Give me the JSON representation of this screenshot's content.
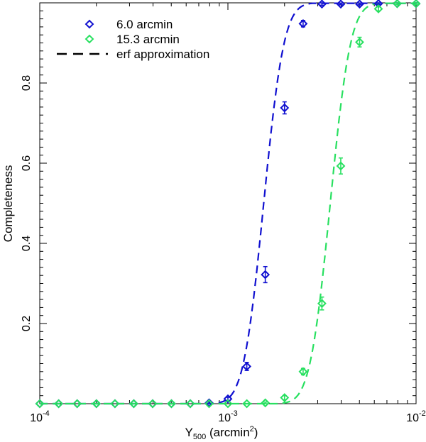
{
  "chart_data": {
    "type": "scatter",
    "title": "",
    "xlabel": {
      "base": "Y",
      "sub": "500",
      "unit_open": " (arcmin",
      "unit_sup": "2",
      "unit_close": ")"
    },
    "ylabel": "Completeness",
    "xscale": "log",
    "xlim": [
      0.0001,
      0.01
    ],
    "ylim": [
      0.0,
      1.0
    ],
    "x_ticks": [
      {
        "value": 0.0001,
        "base": "10",
        "exp": "-4"
      },
      {
        "value": 0.001,
        "base": "10",
        "exp": "-3"
      },
      {
        "value": 0.01,
        "base": "10",
        "exp": "-2"
      }
    ],
    "y_ticks": [
      {
        "value": 0.2,
        "label": "0.2"
      },
      {
        "value": 0.4,
        "label": "0.4"
      },
      {
        "value": 0.6,
        "label": "0.6"
      },
      {
        "value": 0.8,
        "label": "0.8"
      }
    ],
    "legend_position": "top-left",
    "legend": [
      {
        "label": "6.0 arcmin",
        "kind": "marker",
        "color": "#1010d0"
      },
      {
        "label": "15.3 arcmin",
        "kind": "marker",
        "color": "#28e060"
      },
      {
        "label": "erf approximation",
        "kind": "dashed-line",
        "color": "#000000"
      }
    ],
    "series": [
      {
        "name": "6.0 arcmin",
        "color": "#1010d0",
        "x": [
          0.0001,
          0.000126,
          0.000158,
          0.0002,
          0.000251,
          0.000316,
          0.000398,
          0.000501,
          0.000631,
          0.000794,
          0.001,
          0.00126,
          0.00158,
          0.002,
          0.00251,
          0.00316,
          0.00398,
          0.00501,
          0.00631,
          0.00794,
          0.01
        ],
        "y": [
          0.0,
          0.0,
          0.0,
          0.0,
          0.0,
          0.0,
          0.0,
          0.0,
          0.0,
          0.002,
          0.012,
          0.093,
          0.322,
          0.738,
          0.948,
          0.997,
          0.997,
          0.997,
          0.998,
          0.998,
          0.998
        ],
        "err": [
          0,
          0,
          0,
          0,
          0,
          0,
          0,
          0,
          0,
          0.002,
          0.004,
          0.01,
          0.02,
          0.015,
          0.008,
          0.003,
          0.002,
          0.002,
          0.002,
          0.002,
          0.002
        ]
      },
      {
        "name": "15.3 arcmin",
        "color": "#28e060",
        "x": [
          0.0001,
          0.000126,
          0.000158,
          0.0002,
          0.000251,
          0.000316,
          0.000398,
          0.000501,
          0.000631,
          0.000794,
          0.001,
          0.00126,
          0.00158,
          0.002,
          0.00251,
          0.00316,
          0.00398,
          0.00501,
          0.00631,
          0.00794,
          0.01
        ],
        "y": [
          0.0,
          0.0,
          0.0,
          0.0,
          0.0,
          0.0,
          0.0,
          0.0,
          0.0,
          0.0,
          0.0,
          0.0,
          0.002,
          0.015,
          0.08,
          0.25,
          0.593,
          0.902,
          0.985,
          0.998,
          0.998
        ],
        "err": [
          0,
          0,
          0,
          0,
          0,
          0,
          0,
          0,
          0,
          0,
          0,
          0,
          0.002,
          0.005,
          0.008,
          0.016,
          0.02,
          0.012,
          0.005,
          0.002,
          0.002
        ]
      }
    ],
    "erf_fits": [
      {
        "name": "6.0 arcmin erf",
        "color": "#1010d0",
        "center": 0.00155,
        "sigma_dex": 0.085,
        "floor_x": 0.00085
      },
      {
        "name": "15.3 arcmin erf",
        "color": "#28e060",
        "center": 0.0035,
        "sigma_dex": 0.085,
        "floor_x": 0.0019
      }
    ]
  }
}
